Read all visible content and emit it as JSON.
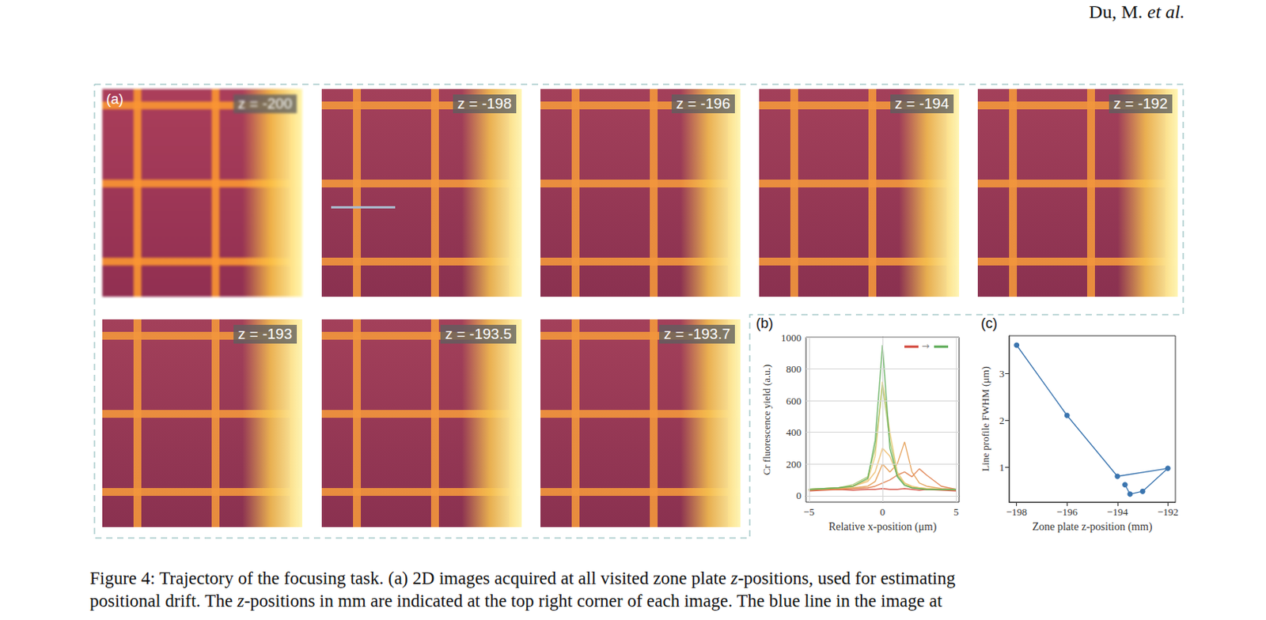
{
  "header": {
    "text": "Du, M.",
    "italic": "et al."
  },
  "panel_a": {
    "label": "(a)",
    "images": [
      {
        "z_label": "z = -200"
      },
      {
        "z_label": "z = -198"
      },
      {
        "z_label": "z = -196"
      },
      {
        "z_label": "z = -194"
      },
      {
        "z_label": "z = -192"
      },
      {
        "z_label": "z = -193"
      },
      {
        "z_label": "z = -193.5"
      },
      {
        "z_label": "z = -193.7"
      }
    ]
  },
  "chart_data": [
    {
      "type": "line",
      "title": "(b)",
      "x_label": "Relative x-position (μm)",
      "y_label": "Cr fluorescence yield (a.u.)",
      "annotation": "→",
      "x": [
        -5,
        -4,
        -3,
        -2,
        -1,
        -0.5,
        0,
        0.5,
        1,
        1.5,
        2,
        2.5,
        3,
        4,
        5
      ],
      "series": [
        {
          "color": "#d2463a",
          "values": [
            30,
            35,
            40,
            35,
            40,
            40,
            45,
            40,
            40,
            45,
            40,
            35,
            40,
            35,
            30
          ]
        },
        {
          "color": "#de7a45",
          "values": [
            35,
            40,
            40,
            45,
            50,
            60,
            80,
            100,
            130,
            150,
            120,
            170,
            130,
            60,
            40
          ]
        },
        {
          "color": "#e39a4c",
          "values": [
            40,
            40,
            45,
            50,
            60,
            90,
            200,
            150,
            200,
            340,
            150,
            80,
            60,
            45,
            40
          ]
        },
        {
          "color": "#ecbb6a",
          "values": [
            40,
            45,
            50,
            60,
            90,
            150,
            300,
            250,
            130,
            80,
            60,
            50,
            45,
            40,
            40
          ]
        },
        {
          "color": "#e9c86e",
          "values": [
            40,
            45,
            50,
            60,
            100,
            250,
            720,
            400,
            150,
            80,
            55,
            50,
            45,
            40,
            40
          ]
        },
        {
          "color": "#a6c46c",
          "values": [
            40,
            45,
            50,
            70,
            120,
            300,
            700,
            350,
            130,
            70,
            50,
            45,
            40,
            40,
            40
          ]
        },
        {
          "color": "#5aaa55",
          "values": [
            40,
            45,
            50,
            60,
            110,
            350,
            950,
            300,
            120,
            65,
            50,
            45,
            40,
            40,
            40
          ]
        }
      ],
      "xlim": [
        -5.2,
        5.2
      ],
      "xticks": [
        {
          "value": -5,
          "label": "−5"
        },
        0,
        5
      ],
      "ylim": [
        -40,
        1000
      ],
      "yticks": [
        0,
        200,
        400,
        600,
        800,
        1000
      ],
      "grid": true
    },
    {
      "type": "line",
      "title": "(c)",
      "x_label": "Zone plate z-position (mm)",
      "y_label": "Line profile FWHM (μm)",
      "marker": "circle",
      "color": "#3b75af",
      "x": [
        -198,
        -196,
        -194,
        -192,
        -193,
        -193.5,
        -193.7
      ],
      "values": [
        3.6,
        2.1,
        0.8,
        0.97,
        0.48,
        0.42,
        0.62
      ],
      "xlim": [
        -198.3,
        -191.7
      ],
      "xticks": [
        {
          "value": -198,
          "label": "−198"
        },
        {
          "value": -196,
          "label": "−196"
        },
        {
          "value": -194,
          "label": "−194"
        },
        {
          "value": -192,
          "label": "−192"
        }
      ],
      "ylim": [
        0.25,
        3.8
      ],
      "yticks": [
        1,
        2,
        3
      ],
      "grid": false
    }
  ],
  "caption": [
    "Figure 4: Trajectory of the focusing task. (a) 2D images acquired at all visited zone plate z-positions, used for estimating",
    "positional drift. The z-positions in mm are indicated at the top right corner of each image. The blue line in the image at"
  ]
}
